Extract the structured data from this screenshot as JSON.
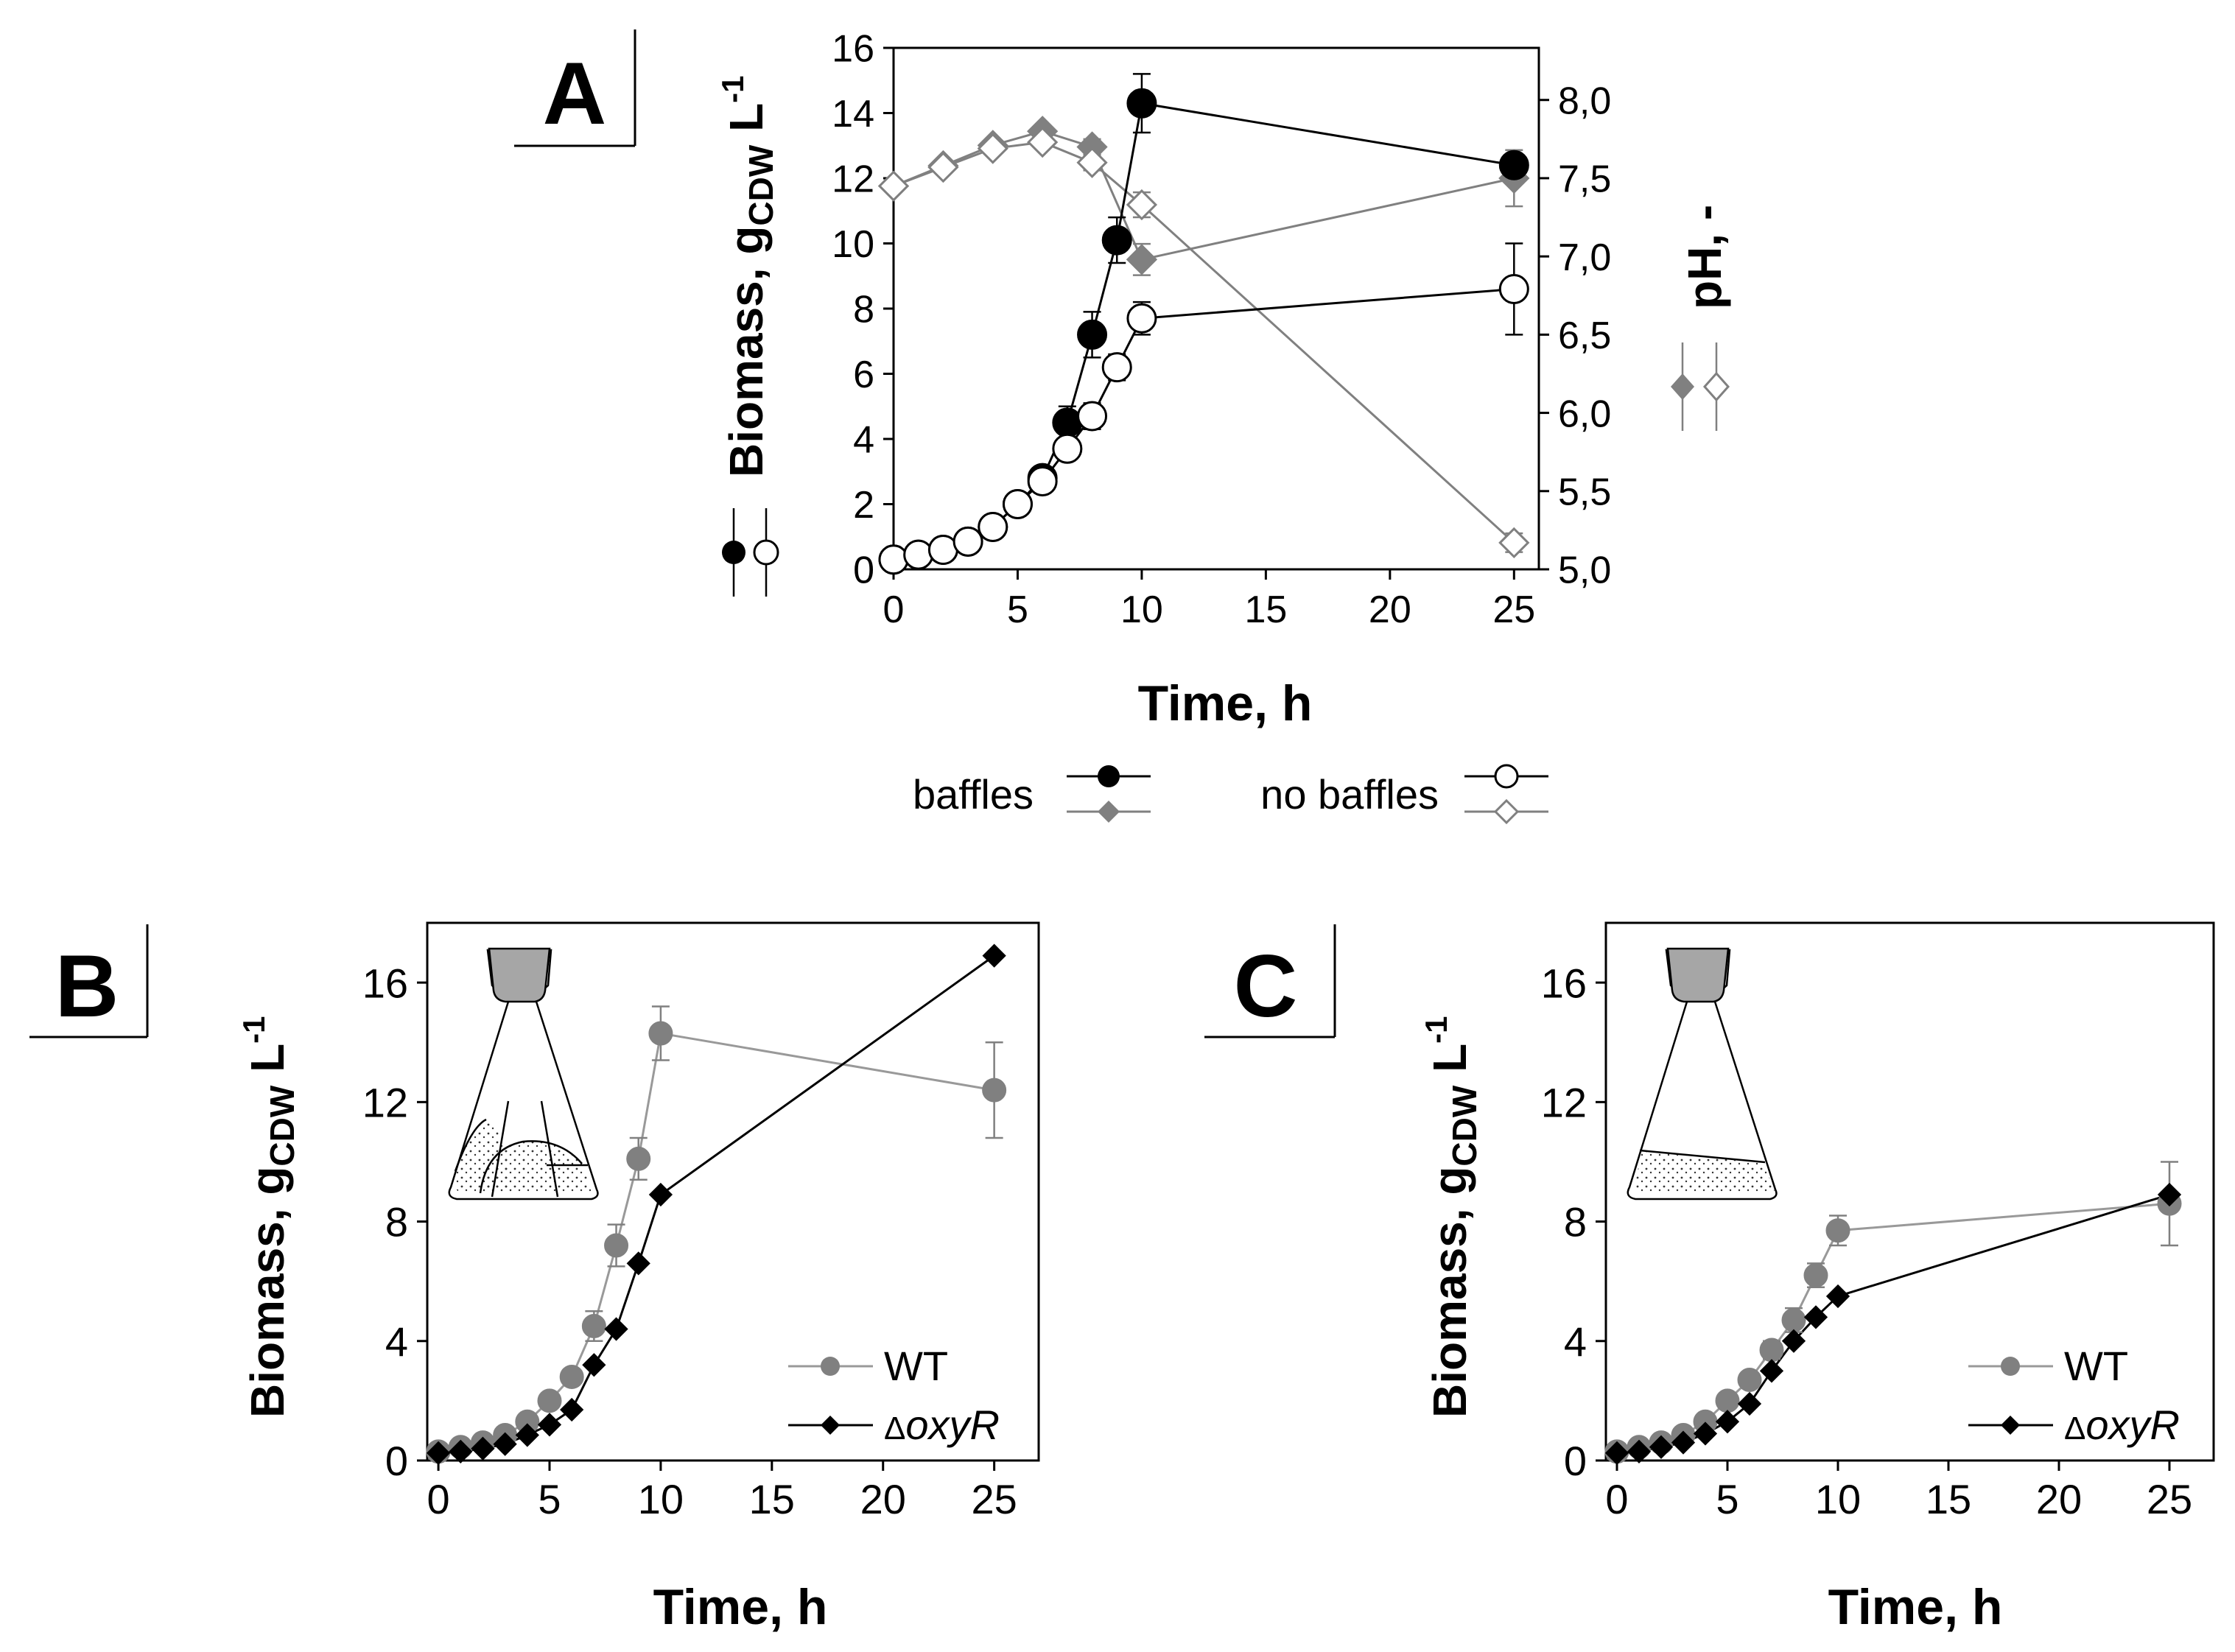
{
  "chart_data": [
    {
      "panel": "A",
      "type": "line",
      "xlabel": "Time, h",
      "ylabel_main": "Biomass, g",
      "ylabel_sub": "CDW",
      "ylabel_unit": " L",
      "ylabel_sup": "-1",
      "y2label": "pH, -",
      "xlim": [
        0,
        26
      ],
      "ylim": [
        0,
        16
      ],
      "y2lim": [
        5.0,
        8.333
      ],
      "xticks": [
        0,
        5,
        10,
        15,
        20,
        25
      ],
      "yticks": [
        0,
        2,
        4,
        6,
        8,
        10,
        12,
        14,
        16
      ],
      "y2ticks": [
        5.0,
        5.5,
        6.0,
        6.5,
        7.0,
        7.5,
        8.0
      ],
      "y2ticklabels": [
        "5,0",
        "5,5",
        "6,0",
        "6,5",
        "7,0",
        "7,5",
        "8,0"
      ],
      "series": [
        {
          "name": "baffles biomass",
          "axis": "left",
          "marker": "circle",
          "fill": "#000000",
          "stroke": "#000000",
          "line": "#000000",
          "x": [
            0,
            1,
            2,
            3,
            4,
            5,
            6,
            7,
            8,
            9,
            10,
            25
          ],
          "values": [
            0.3,
            0.45,
            0.6,
            0.85,
            1.3,
            2.0,
            2.8,
            4.5,
            7.2,
            10.1,
            14.3,
            12.4
          ],
          "errors": [
            0,
            0,
            0,
            0,
            0.1,
            0.1,
            0.2,
            0.5,
            0.7,
            0.7,
            0.9,
            0
          ]
        },
        {
          "name": "no baffles biomass",
          "axis": "left",
          "marker": "circle",
          "fill": "#ffffff",
          "stroke": "#000000",
          "line": "#000000",
          "x": [
            0,
            1,
            2,
            3,
            4,
            5,
            6,
            7,
            8,
            9,
            10,
            25
          ],
          "values": [
            0.3,
            0.45,
            0.6,
            0.85,
            1.3,
            2.0,
            2.7,
            3.7,
            4.7,
            6.2,
            7.7,
            8.6
          ],
          "errors": [
            0,
            0,
            0,
            0,
            0.1,
            0.1,
            0.2,
            0.3,
            0.4,
            0.4,
            0.5,
            1.4
          ]
        },
        {
          "name": "baffles pH",
          "axis": "right",
          "marker": "diamond",
          "fill": "#808080",
          "stroke": "#808080",
          "line": "#808080",
          "x": [
            0,
            2,
            4,
            6,
            8,
            10,
            25
          ],
          "values": [
            7.45,
            7.58,
            7.71,
            7.8,
            7.7,
            6.98,
            7.5
          ],
          "errors": [
            0,
            0,
            0,
            0,
            0.05,
            0.1,
            0.18
          ]
        },
        {
          "name": "no baffles pH",
          "axis": "right",
          "marker": "diamond",
          "fill": "#ffffff",
          "stroke": "#808080",
          "line": "#808080",
          "x": [
            0,
            2,
            4,
            6,
            8,
            10,
            25
          ],
          "values": [
            7.45,
            7.57,
            7.69,
            7.73,
            7.6,
            7.33,
            5.17
          ],
          "errors": [
            0,
            0,
            0,
            0,
            0.05,
            0.08,
            0.06
          ]
        }
      ],
      "legend": {
        "baffles_label": "baffles",
        "no_baffles_label": "no baffles"
      }
    },
    {
      "panel": "B",
      "type": "line",
      "xlabel": "Time, h",
      "ylabel_main": "Biomass, g",
      "ylabel_sub": "CDW",
      "ylabel_unit": " L",
      "ylabel_sup": "-1",
      "xlim": [
        -0.5,
        27
      ],
      "ylim": [
        0,
        18
      ],
      "xticks": [
        0,
        5,
        10,
        15,
        20,
        25
      ],
      "yticks": [
        0,
        4,
        8,
        12,
        16
      ],
      "series": [
        {
          "name": "WT",
          "marker": "circle",
          "fill": "#808080",
          "stroke": "#808080",
          "line": "#999999",
          "x": [
            0,
            1,
            2,
            3,
            4,
            5,
            6,
            7,
            8,
            9,
            10,
            25
          ],
          "values": [
            0.3,
            0.45,
            0.6,
            0.85,
            1.3,
            2.0,
            2.8,
            4.5,
            7.2,
            10.1,
            14.3,
            12.4
          ],
          "errors": [
            0,
            0,
            0,
            0,
            0.1,
            0.1,
            0.2,
            0.5,
            0.7,
            0.7,
            0.9,
            1.6
          ]
        },
        {
          "name": "ΔoxyR",
          "marker": "diamond",
          "fill": "#000000",
          "stroke": "#000000",
          "line": "#000000",
          "x": [
            0,
            1,
            2,
            3,
            4,
            5,
            6,
            7,
            8,
            9,
            10,
            25
          ],
          "values": [
            0.25,
            0.3,
            0.4,
            0.55,
            0.85,
            1.2,
            1.7,
            3.2,
            4.4,
            6.6,
            8.9,
            16.9
          ],
          "errors": [
            0,
            0,
            0,
            0,
            0,
            0,
            0,
            0,
            0,
            0,
            0,
            0
          ]
        }
      ],
      "legend": {
        "wt_label": "WT",
        "mutant_prefix": "Δ",
        "mutant_italic": "oxyR"
      },
      "inset": "baffled flask"
    },
    {
      "panel": "C",
      "type": "line",
      "xlabel": "Time, h",
      "ylabel_main": "Biomass, g",
      "ylabel_sub": "CDW",
      "ylabel_unit": " L",
      "ylabel_sup": "-1",
      "xlim": [
        -0.5,
        27
      ],
      "ylim": [
        0,
        18
      ],
      "xticks": [
        0,
        5,
        10,
        15,
        20,
        25
      ],
      "yticks": [
        0,
        4,
        8,
        12,
        16
      ],
      "series": [
        {
          "name": "WT",
          "marker": "circle",
          "fill": "#808080",
          "stroke": "#808080",
          "line": "#999999",
          "x": [
            0,
            1,
            2,
            3,
            4,
            5,
            6,
            7,
            8,
            9,
            10,
            25
          ],
          "values": [
            0.3,
            0.45,
            0.6,
            0.85,
            1.3,
            2.0,
            2.7,
            3.7,
            4.7,
            6.2,
            7.7,
            8.6
          ],
          "errors": [
            0,
            0,
            0,
            0,
            0.1,
            0.1,
            0.2,
            0.3,
            0.4,
            0.4,
            0.5,
            1.4
          ]
        },
        {
          "name": "ΔoxyR",
          "marker": "diamond",
          "fill": "#000000",
          "stroke": "#000000",
          "line": "#000000",
          "x": [
            0,
            1,
            2,
            3,
            4,
            5,
            6,
            7,
            8,
            9,
            10,
            25
          ],
          "values": [
            0.25,
            0.3,
            0.45,
            0.6,
            0.9,
            1.3,
            1.9,
            3.0,
            4.0,
            4.8,
            5.5,
            8.9
          ],
          "errors": [
            0,
            0,
            0,
            0,
            0,
            0,
            0,
            0,
            0,
            0,
            0,
            0
          ]
        }
      ],
      "legend": {
        "wt_label": "WT",
        "mutant_prefix": "Δ",
        "mutant_italic": "oxyR"
      },
      "inset": "unbaffled flask"
    }
  ]
}
